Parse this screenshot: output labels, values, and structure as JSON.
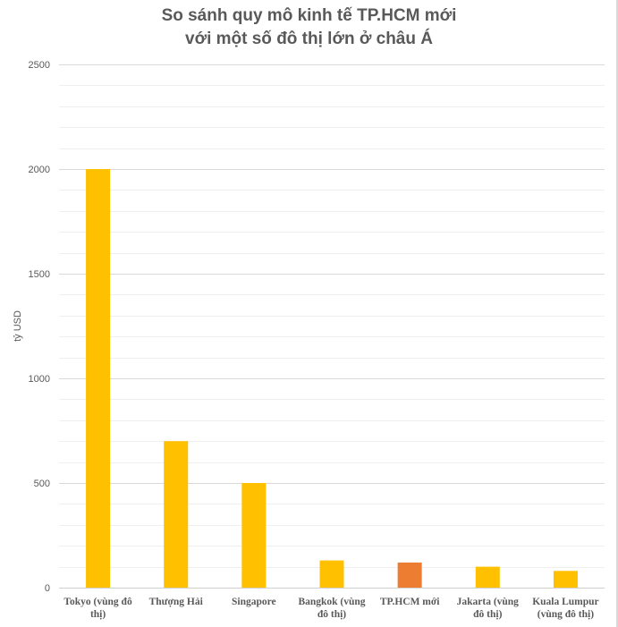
{
  "chart_data": {
    "type": "bar",
    "title_lines": [
      "So sánh quy mô kinh tế TP.HCM mới",
      "với một số đô thị lớn ở châu Á"
    ],
    "ylabel": "tỷ USD",
    "xlabel": "",
    "ylim": [
      0,
      2500
    ],
    "yticks": [
      "0",
      "500",
      "1000",
      "1500",
      "2000",
      "2500"
    ],
    "ytick_values": [
      0,
      500,
      1000,
      1500,
      2000,
      2500
    ],
    "grid": true,
    "legend": "none",
    "categories": [
      [
        "Tokyo (vùng đô",
        "thị)"
      ],
      [
        "Thượng Hải"
      ],
      [
        "Singapore"
      ],
      [
        "Bangkok (vùng",
        "đô thị)"
      ],
      [
        "TP.HCM mới"
      ],
      [
        "Jakarta (vùng",
        "đô thị)"
      ],
      [
        "Kuala Lumpur",
        "(vùng đô thị)"
      ]
    ],
    "values": [
      2000,
      700,
      500,
      130,
      120,
      100,
      80
    ],
    "colors": [
      "#FFC000",
      "#FFC000",
      "#FFC000",
      "#FFC000",
      "#ED7D31",
      "#FFC000",
      "#FFC000"
    ]
  }
}
